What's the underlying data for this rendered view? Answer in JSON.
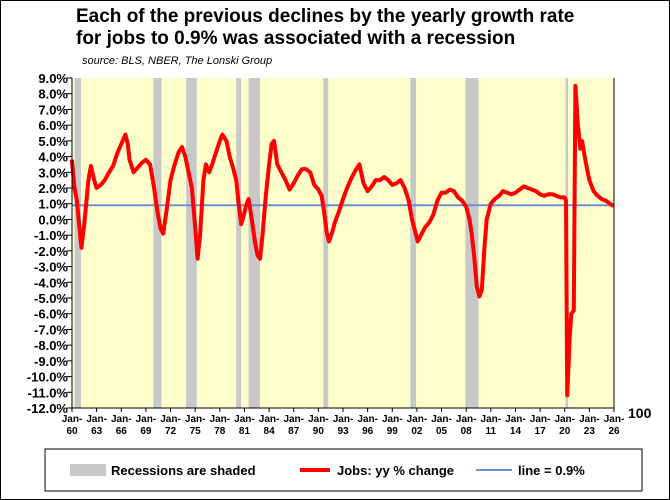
{
  "chart_data": {
    "type": "line",
    "title_line1": "Each of the previous declines by the yearly growth rate",
    "title_line2": "for jobs to 0.9% was associated with a recession",
    "subtitle": "source: BLS, NBER, The Lonski Group",
    "ylim": [
      -12,
      9
    ],
    "y_ticks": [
      "9.0%",
      "8.0%",
      "7.0%",
      "6.0%",
      "5.0%",
      "4.0%",
      "3.0%",
      "2.0%",
      "1.0%",
      "0.0%",
      "-1.0%",
      "-2.0%",
      "-3.0%",
      "-4.0%",
      "-5.0%",
      "-6.0%",
      "-7.0%",
      "-8.0%",
      "-9.0%",
      "-10.0%",
      "-11.0%",
      "-12.0%"
    ],
    "y_tick_values": [
      9,
      8,
      7,
      6,
      5,
      4,
      3,
      2,
      1,
      0,
      -1,
      -2,
      -3,
      -4,
      -5,
      -6,
      -7,
      -8,
      -9,
      -10,
      -11,
      -12
    ],
    "x_range": [
      1960,
      2026
    ],
    "x_ticks": [
      {
        "year": 1960,
        "top": "Jan-",
        "bottom": "60"
      },
      {
        "year": 1963,
        "top": "Jan-",
        "bottom": "63"
      },
      {
        "year": 1966,
        "top": "Jan-",
        "bottom": "66"
      },
      {
        "year": 1969,
        "top": "Jan-",
        "bottom": "69"
      },
      {
        "year": 1972,
        "top": "Jan-",
        "bottom": "72"
      },
      {
        "year": 1975,
        "top": "Jan-",
        "bottom": "75"
      },
      {
        "year": 1978,
        "top": "Jan-",
        "bottom": "78"
      },
      {
        "year": 1981,
        "top": "Jan-",
        "bottom": "81"
      },
      {
        "year": 1984,
        "top": "Jan-",
        "bottom": "84"
      },
      {
        "year": 1987,
        "top": "Jan-",
        "bottom": "87"
      },
      {
        "year": 1990,
        "top": "Jan-",
        "bottom": "90"
      },
      {
        "year": 1993,
        "top": "Jan-",
        "bottom": "93"
      },
      {
        "year": 1996,
        "top": "Jan-",
        "bottom": "96"
      },
      {
        "year": 1999,
        "top": "Jan-",
        "bottom": "99"
      },
      {
        "year": 2002,
        "top": "Jan-",
        "bottom": "02"
      },
      {
        "year": 2005,
        "top": "Jan-",
        "bottom": "05"
      },
      {
        "year": 2008,
        "top": "Jan-",
        "bottom": "08"
      },
      {
        "year": 2011,
        "top": "Jan-",
        "bottom": "11"
      },
      {
        "year": 2014,
        "top": "Jan-",
        "bottom": "14"
      },
      {
        "year": 2017,
        "top": "Jan-",
        "bottom": "17"
      },
      {
        "year": 2020,
        "top": "Jan-",
        "bottom": "20"
      },
      {
        "year": 2023,
        "top": "Jan-",
        "bottom": "23"
      },
      {
        "year": 2026,
        "top": "Jan-",
        "bottom": "26"
      }
    ],
    "right_axis_label": "100",
    "recessions": [
      [
        1960.3,
        1961.1
      ],
      [
        1969.9,
        1970.9
      ],
      [
        1973.9,
        1975.2
      ],
      [
        1980.0,
        1980.6
      ],
      [
        1981.5,
        1982.9
      ],
      [
        1990.6,
        1991.2
      ],
      [
        2001.2,
        2001.9
      ],
      [
        2007.9,
        2009.5
      ],
      [
        2020.1,
        2020.4
      ]
    ],
    "reference_line": {
      "value": 0.9,
      "label": "line = 0.9%"
    },
    "series": [
      {
        "name": "Jobs: yy % change",
        "color": "#ff0000",
        "points": [
          [
            1960.0,
            3.7
          ],
          [
            1960.3,
            2.0
          ],
          [
            1960.6,
            1.2
          ],
          [
            1960.9,
            -0.5
          ],
          [
            1961.15,
            -1.8
          ],
          [
            1961.5,
            -0.3
          ],
          [
            1962.0,
            2.5
          ],
          [
            1962.3,
            3.4
          ],
          [
            1962.7,
            2.5
          ],
          [
            1963.0,
            2.0
          ],
          [
            1963.5,
            2.2
          ],
          [
            1964.0,
            2.5
          ],
          [
            1964.5,
            3.0
          ],
          [
            1965.0,
            3.4
          ],
          [
            1965.5,
            4.2
          ],
          [
            1966.0,
            4.8
          ],
          [
            1966.5,
            5.4
          ],
          [
            1966.8,
            4.8
          ],
          [
            1967.0,
            3.8
          ],
          [
            1967.5,
            3.0
          ],
          [
            1968.0,
            3.3
          ],
          [
            1968.5,
            3.6
          ],
          [
            1969.0,
            3.8
          ],
          [
            1969.5,
            3.5
          ],
          [
            1970.0,
            2.0
          ],
          [
            1970.4,
            0.5
          ],
          [
            1970.8,
            -0.6
          ],
          [
            1971.1,
            -0.9
          ],
          [
            1971.5,
            0.5
          ],
          [
            1972.0,
            2.5
          ],
          [
            1972.5,
            3.5
          ],
          [
            1973.0,
            4.3
          ],
          [
            1973.4,
            4.6
          ],
          [
            1973.8,
            4.0
          ],
          [
            1974.2,
            3.0
          ],
          [
            1974.6,
            2.0
          ],
          [
            1975.0,
            -0.5
          ],
          [
            1975.3,
            -2.5
          ],
          [
            1975.6,
            -1.0
          ],
          [
            1976.0,
            2.5
          ],
          [
            1976.3,
            3.5
          ],
          [
            1976.7,
            3.0
          ],
          [
            1977.0,
            3.4
          ],
          [
            1977.5,
            4.2
          ],
          [
            1978.0,
            5.0
          ],
          [
            1978.3,
            5.4
          ],
          [
            1978.8,
            5.0
          ],
          [
            1979.2,
            4.0
          ],
          [
            1979.6,
            3.3
          ],
          [
            1980.0,
            2.5
          ],
          [
            1980.3,
            1.0
          ],
          [
            1980.6,
            -0.3
          ],
          [
            1980.9,
            0.2
          ],
          [
            1981.2,
            0.9
          ],
          [
            1981.5,
            1.3
          ],
          [
            1981.9,
            0.0
          ],
          [
            1982.3,
            -1.5
          ],
          [
            1982.6,
            -2.3
          ],
          [
            1982.9,
            -2.5
          ],
          [
            1983.2,
            -1.0
          ],
          [
            1983.6,
            1.5
          ],
          [
            1984.0,
            3.5
          ],
          [
            1984.3,
            4.8
          ],
          [
            1984.6,
            5.0
          ],
          [
            1985.0,
            3.5
          ],
          [
            1985.5,
            3.0
          ],
          [
            1986.0,
            2.5
          ],
          [
            1986.5,
            1.9
          ],
          [
            1987.0,
            2.3
          ],
          [
            1987.5,
            2.8
          ],
          [
            1988.0,
            3.2
          ],
          [
            1988.5,
            3.2
          ],
          [
            1989.0,
            3.0
          ],
          [
            1989.5,
            2.2
          ],
          [
            1990.0,
            1.9
          ],
          [
            1990.4,
            1.5
          ],
          [
            1990.7,
            0.5
          ],
          [
            1991.0,
            -0.8
          ],
          [
            1991.3,
            -1.4
          ],
          [
            1991.7,
            -0.8
          ],
          [
            1992.0,
            -0.2
          ],
          [
            1992.5,
            0.5
          ],
          [
            1993.0,
            1.3
          ],
          [
            1993.5,
            2.0
          ],
          [
            1994.0,
            2.6
          ],
          [
            1994.5,
            3.1
          ],
          [
            1995.0,
            3.5
          ],
          [
            1995.5,
            2.3
          ],
          [
            1996.0,
            1.8
          ],
          [
            1996.5,
            2.1
          ],
          [
            1997.0,
            2.5
          ],
          [
            1997.5,
            2.5
          ],
          [
            1998.0,
            2.7
          ],
          [
            1998.5,
            2.5
          ],
          [
            1999.0,
            2.2
          ],
          [
            1999.5,
            2.3
          ],
          [
            2000.0,
            2.5
          ],
          [
            2000.5,
            2.0
          ],
          [
            2001.0,
            1.2
          ],
          [
            2001.4,
            0.0
          ],
          [
            2001.8,
            -0.8
          ],
          [
            2002.1,
            -1.4
          ],
          [
            2002.5,
            -1.0
          ],
          [
            2003.0,
            -0.5
          ],
          [
            2003.5,
            -0.2
          ],
          [
            2004.0,
            0.3
          ],
          [
            2004.5,
            1.2
          ],
          [
            2005.0,
            1.7
          ],
          [
            2005.5,
            1.7
          ],
          [
            2006.0,
            1.9
          ],
          [
            2006.5,
            1.8
          ],
          [
            2007.0,
            1.4
          ],
          [
            2007.5,
            1.2
          ],
          [
            2008.0,
            0.8
          ],
          [
            2008.4,
            0.0
          ],
          [
            2008.7,
            -1.0
          ],
          [
            2009.0,
            -2.5
          ],
          [
            2009.3,
            -4.3
          ],
          [
            2009.6,
            -4.9
          ],
          [
            2009.9,
            -4.5
          ],
          [
            2010.2,
            -2.0
          ],
          [
            2010.5,
            0.0
          ],
          [
            2011.0,
            1.0
          ],
          [
            2011.5,
            1.3
          ],
          [
            2012.0,
            1.5
          ],
          [
            2012.5,
            1.8
          ],
          [
            2013.0,
            1.7
          ],
          [
            2013.5,
            1.6
          ],
          [
            2014.0,
            1.7
          ],
          [
            2014.5,
            1.9
          ],
          [
            2015.0,
            2.1
          ],
          [
            2015.5,
            2.0
          ],
          [
            2016.0,
            1.9
          ],
          [
            2016.5,
            1.8
          ],
          [
            2017.0,
            1.6
          ],
          [
            2017.5,
            1.5
          ],
          [
            2018.0,
            1.6
          ],
          [
            2018.5,
            1.6
          ],
          [
            2019.0,
            1.5
          ],
          [
            2019.5,
            1.4
          ],
          [
            2020.0,
            1.4
          ],
          [
            2020.15,
            1.2
          ],
          [
            2020.3,
            -11.2
          ],
          [
            2020.45,
            -9.5
          ],
          [
            2020.6,
            -7.5
          ],
          [
            2020.8,
            -6.0
          ],
          [
            2021.1,
            -5.8
          ],
          [
            2021.3,
            8.5
          ],
          [
            2021.6,
            6.0
          ],
          [
            2021.9,
            4.5
          ],
          [
            2022.1,
            5.0
          ],
          [
            2022.5,
            3.8
          ],
          [
            2022.8,
            3.0
          ],
          [
            2023.0,
            2.5
          ],
          [
            2023.5,
            1.8
          ],
          [
            2024.0,
            1.5
          ],
          [
            2024.5,
            1.3
          ],
          [
            2025.0,
            1.2
          ],
          [
            2025.5,
            1.0
          ],
          [
            2025.8,
            0.9
          ]
        ]
      }
    ],
    "legend": {
      "recession_label": "Recessions are shaded",
      "series_label": "Jobs: yy % change",
      "line_label": "line = 0.9%"
    },
    "colors": {
      "plot_background": "#ffffcc",
      "recession": "#c8c8c8",
      "series": "#ff0000",
      "reference_line": "#6a8fd8"
    }
  }
}
